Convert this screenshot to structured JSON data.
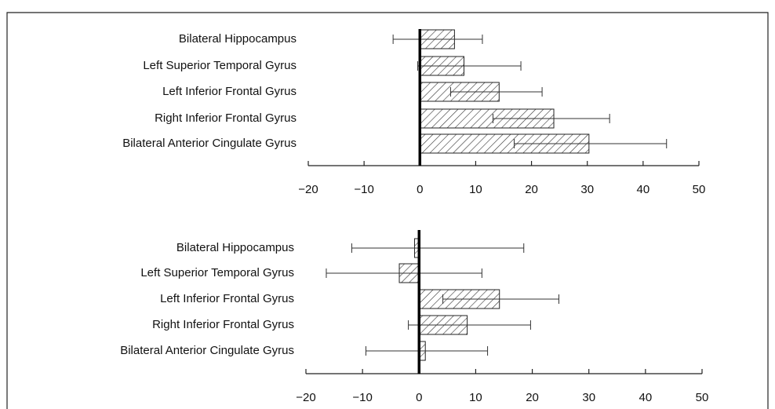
{
  "chart_data": [
    {
      "type": "bar",
      "orientation": "horizontal",
      "categories": [
        "Bilateral Hippocampus",
        "Left Superior Temporal Gyrus",
        "Left Inferior Frontal Gyrus",
        "Right Inferior Frontal Gyrus",
        "Bilateral Anterior Cingulate Gyrus"
      ],
      "values": [
        6.2,
        7.9,
        14.2,
        24.0,
        30.3
      ],
      "error_low": [
        -4.8,
        -0.4,
        5.5,
        13.1,
        16.9
      ],
      "error_high": [
        11.2,
        18.1,
        21.9,
        34.0,
        44.2
      ],
      "xlim": [
        -20,
        50
      ],
      "xticks": [
        {
          "value": -20,
          "label": "−20"
        },
        {
          "value": -10,
          "label": "−10"
        },
        0,
        10,
        20,
        30,
        40,
        50
      ],
      "hatch": true
    },
    {
      "type": "bar",
      "orientation": "horizontal",
      "categories": [
        "Bilateral Hippocampus",
        "Left Superior Temporal Gyrus",
        "Left Inferior Frontal Gyrus",
        "Right Inferior Frontal Gyrus",
        "Bilateral Anterior Cingulate Gyrus"
      ],
      "values": [
        -0.8,
        -3.5,
        14.2,
        8.5,
        1.1
      ],
      "error_low": [
        -11.9,
        -16.4,
        4.2,
        -1.9,
        -9.4
      ],
      "error_high": [
        18.5,
        11.1,
        24.7,
        19.7,
        12.1
      ],
      "xlim": [
        -20,
        50
      ],
      "xticks": [
        {
          "value": -20,
          "label": "−20"
        },
        {
          "value": -10,
          "label": "−10"
        },
        0,
        10,
        20,
        30,
        40,
        50
      ],
      "hatch": true
    }
  ]
}
